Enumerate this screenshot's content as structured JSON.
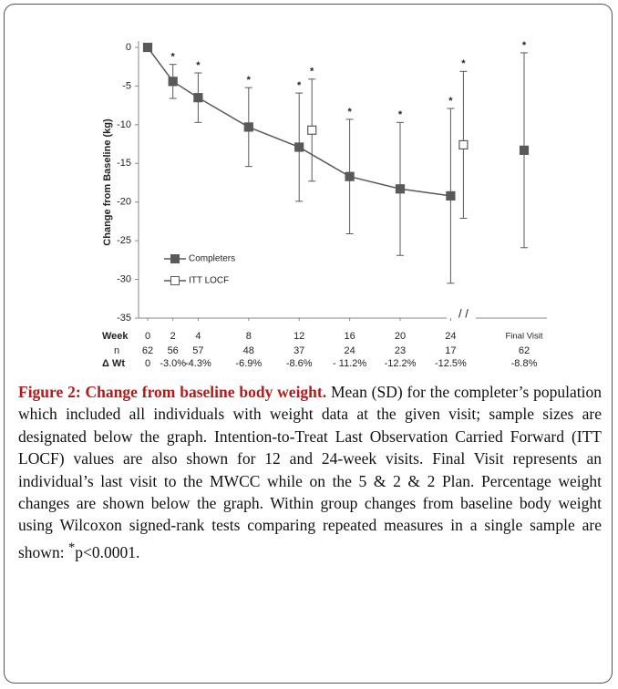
{
  "chart_data": {
    "type": "line",
    "ylabel": "Change from Baseline (kg)",
    "xlabel": "Week",
    "x": [
      0,
      2,
      4,
      8,
      12,
      16,
      20,
      24
    ],
    "xticks": [
      0,
      2,
      4,
      8,
      12,
      16,
      20,
      24
    ],
    "ylim": [
      -35,
      0
    ],
    "yticks": [
      0,
      -5,
      -10,
      -15,
      -20,
      -25,
      -30,
      -35
    ],
    "legend": "lower left",
    "significance_marker": "*",
    "series": [
      {
        "name": "Completers",
        "color": "#595959",
        "marker": "filled",
        "x": [
          0,
          2,
          4,
          8,
          12,
          16,
          20,
          24
        ],
        "values": [
          0,
          -4.4,
          -6.5,
          -10.3,
          -12.9,
          -16.7,
          -18.3,
          -19.2
        ],
        "errors": [
          0,
          2.2,
          3.2,
          5.1,
          7.0,
          7.4,
          8.6,
          11.3
        ],
        "significant": [
          false,
          true,
          true,
          true,
          true,
          true,
          true,
          true
        ]
      },
      {
        "name": "ITT LOCF",
        "color": "#595959",
        "marker": "open",
        "x": [
          12,
          24
        ],
        "values": [
          -10.7,
          -12.6
        ],
        "errors": [
          6.6,
          9.5
        ],
        "significant": [
          true,
          true
        ]
      }
    ],
    "final_visit": {
      "label": "Final Visit",
      "value": -13.3,
      "error": 12.6,
      "n": 62,
      "delta": -8.8,
      "delta_value_label": "-8.8%",
      "significant": true
    },
    "n_label": "n",
    "n": [
      62,
      56,
      57,
      48,
      37,
      24,
      23,
      17
    ],
    "delta_label": "Δ Wt",
    "delta": [
      0,
      -3.0,
      -4.3,
      -6.9,
      -8.6,
      -11.2,
      -12.2,
      -12.5
    ],
    "delta_value_labels": [
      "0",
      "-3.0%",
      "-4.3%",
      "-6.9%",
      "-8.6%",
      "- 11.2%",
      "-12.2%",
      "-12.5%"
    ]
  },
  "caption": {
    "label": "Figure 2:",
    "title": "Change from baseline body weight.",
    "text": "Mean (SD) for the completer’s population which included all individuals with weight data at the given visit; sample sizes are designated below the graph. Intention-to-Treat Last Observation Carried Forward (ITT LOCF) values are also shown for 12 and 24-week visits. Final Visit represents an individual’s last visit to the MWCC while on the 5 & 2 & 2 Plan. Percentage weight changes are shown below the graph. Within group changes from baseline body weight using Wilcoxon signed-rank tests comparing repeated measures in a single sample are shown:",
    "footnote_marker": "*",
    "footnote": "p<0.0001."
  }
}
